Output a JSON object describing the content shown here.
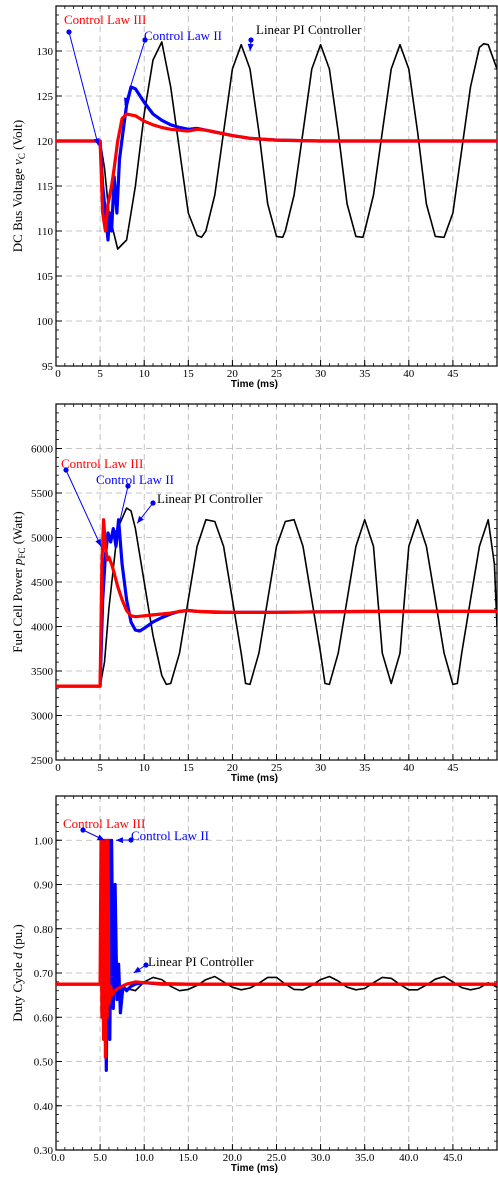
{
  "chart_data": [
    {
      "type": "line",
      "xlabel": "Time (ms)",
      "ylabel": "DC Bus Voltage",
      "ylabel_sym": "v",
      "ylabel_sub": "C",
      "ylabel_unit": "(Volt)",
      "xlim": [
        0,
        50
      ],
      "ylim": [
        95,
        135
      ],
      "x_ticks": [
        "0",
        "5",
        "10",
        "15",
        "20",
        "25",
        "30",
        "35",
        "40",
        "45"
      ],
      "y_ticks": [
        "95",
        "100",
        "105",
        "110",
        "115",
        "120",
        "125",
        "130"
      ],
      "grid": true,
      "series": [
        {
          "name": "Linear PI Controller",
          "color": "#000000",
          "x": [
            0,
            5,
            5.5,
            6,
            7,
            8,
            9,
            10,
            11,
            12,
            13,
            14,
            15,
            16,
            16.5,
            17,
            18,
            19,
            20,
            21,
            22,
            23,
            24,
            25,
            25.7,
            26,
            27,
            28,
            29,
            30,
            31,
            32,
            33,
            34,
            34.8,
            35,
            36,
            37,
            38,
            39,
            40,
            41,
            42,
            43,
            44,
            44,
            45,
            46,
            47,
            48,
            48.5,
            49,
            50
          ],
          "y": [
            120,
            120,
            117,
            112,
            108,
            109,
            115,
            123,
            129,
            131,
            126,
            119,
            112,
            109.5,
            109.3,
            110,
            114,
            121,
            128,
            130.7,
            128,
            121,
            113,
            109.4,
            109.3,
            110,
            114,
            121,
            128,
            130.7,
            128,
            121,
            113,
            109.4,
            109.3,
            110,
            114,
            121,
            128,
            130.7,
            128,
            121,
            113,
            109.4,
            109.3,
            109.3,
            112,
            119,
            126,
            130.4,
            130.8,
            130.7,
            128
          ]
        },
        {
          "name": "Control Law II",
          "color": "#0000ff",
          "x": [
            0,
            5,
            5.3,
            5.6,
            5.9,
            6.1,
            6.3,
            6.6,
            6.9,
            7.2,
            7.6,
            8,
            8.5,
            9,
            10,
            11,
            12,
            13,
            14,
            15,
            16,
            17,
            18,
            20,
            22,
            25,
            30,
            50
          ],
          "y": [
            120,
            120,
            115,
            112,
            109,
            112,
            110,
            116,
            112,
            118,
            121,
            124,
            126,
            125.8,
            124.3,
            123,
            122.3,
            121.8,
            121.5,
            121.3,
            121.4,
            121.2,
            121,
            120.6,
            120.3,
            120.1,
            120,
            120
          ]
        },
        {
          "name": "Control Law III",
          "color": "#ff0000",
          "x": [
            0,
            5,
            5.3,
            5.6,
            5.9,
            6.3,
            6.6,
            7,
            7.5,
            8,
            9,
            10,
            11,
            12,
            13,
            14,
            15,
            16,
            17,
            18,
            20,
            22,
            25,
            30,
            50
          ],
          "y": [
            120,
            120,
            112,
            110,
            113,
            115,
            117,
            120,
            122.5,
            123,
            122.8,
            122.2,
            121.8,
            121.5,
            121.3,
            121.2,
            121.1,
            121.3,
            121.2,
            121,
            120.6,
            120.3,
            120.1,
            120,
            120
          ]
        }
      ],
      "annotations": [
        {
          "text": "Control Law III",
          "color": "#ff0000",
          "target_series": "Control Law III"
        },
        {
          "text": "Control Law II",
          "color": "#0000ff",
          "target_series": "Control Law II"
        },
        {
          "text": "Linear PI Controller",
          "color": "#000000",
          "target_series": "Linear PI Controller"
        }
      ]
    },
    {
      "type": "line",
      "xlabel": "Time (ms)",
      "ylabel": "Fuel Cell Power",
      "ylabel_sym": "p",
      "ylabel_sub": "FC",
      "ylabel_unit": "(Watt)",
      "xlim": [
        0,
        50
      ],
      "ylim": [
        2500,
        6500
      ],
      "x_ticks": [
        "0",
        "5",
        "10",
        "15",
        "20",
        "25",
        "30",
        "35",
        "40",
        "45"
      ],
      "y_ticks": [
        "2500",
        "3000",
        "3500",
        "4000",
        "4500",
        "5000",
        "5500",
        "6000"
      ],
      "grid": true,
      "series": [
        {
          "name": "Linear PI Controller",
          "color": "#000000",
          "x": [
            0,
            5,
            5.5,
            6,
            7,
            8,
            8.5,
            9,
            10,
            11,
            12,
            12.5,
            13,
            14,
            15,
            16,
            17,
            18,
            19,
            20,
            21,
            21.5,
            22,
            23,
            24,
            25,
            26,
            27,
            28,
            29,
            30,
            30.5,
            31,
            32,
            33,
            34,
            35,
            36,
            36.5,
            37,
            38,
            39,
            39.5,
            40,
            41,
            42,
            43,
            44,
            45,
            45.5,
            46,
            47,
            48,
            49,
            49.7,
            50
          ],
          "y": [
            3330,
            3330,
            3600,
            4200,
            5100,
            5330,
            5300,
            5100,
            4500,
            3900,
            3450,
            3350,
            3360,
            3700,
            4300,
            4900,
            5200,
            5180,
            4900,
            4300,
            3700,
            3360,
            3350,
            3700,
            4300,
            4900,
            5180,
            5200,
            4900,
            4300,
            3700,
            3360,
            3350,
            3700,
            4300,
            4900,
            5200,
            4900,
            4300,
            3700,
            3360,
            3700,
            4300,
            4900,
            5200,
            4900,
            4300,
            3700,
            3350,
            3360,
            3700,
            4300,
            4900,
            5200,
            4700,
            4000
          ]
        },
        {
          "name": "Control Law II",
          "color": "#0000ff",
          "x": [
            0,
            5,
            5.3,
            5.6,
            5.9,
            6.2,
            6.5,
            6.8,
            7.1,
            7.5,
            8,
            8.5,
            9,
            9.5,
            10,
            11,
            12,
            13,
            14,
            15,
            16,
            18,
            20,
            25,
            30,
            35,
            40,
            45,
            50
          ],
          "y": [
            3330,
            3330,
            4300,
            4800,
            5050,
            4950,
            5100,
            4900,
            5200,
            4700,
            4300,
            4050,
            3960,
            3950,
            3980,
            4050,
            4100,
            4140,
            4170,
            4180,
            4170,
            4160,
            4160,
            4160,
            4165,
            4170,
            4170,
            4170,
            4170
          ]
        },
        {
          "name": "Control Law III",
          "color": "#ff0000",
          "x": [
            0,
            5,
            5.2,
            5.4,
            5.6,
            5.8,
            6,
            6.3,
            6.6,
            7,
            7.5,
            8,
            8.5,
            9,
            10,
            11,
            12,
            13,
            14,
            15,
            16,
            20,
            25,
            30,
            40,
            50
          ],
          "y": [
            3330,
            3330,
            4700,
            5200,
            4900,
            4750,
            4780,
            4700,
            4600,
            4450,
            4300,
            4180,
            4120,
            4110,
            4120,
            4130,
            4140,
            4150,
            4170,
            4180,
            4170,
            4160,
            4160,
            4165,
            4170,
            4170
          ]
        }
      ],
      "annotations": [
        {
          "text": "Control Law III",
          "color": "#ff0000",
          "target_series": "Control Law III"
        },
        {
          "text": "Control Law II",
          "color": "#0000ff",
          "target_series": "Control Law II"
        },
        {
          "text": "Linear PI Controller",
          "color": "#000000",
          "target_series": "Linear PI Controller"
        }
      ]
    },
    {
      "type": "line",
      "xlabel": "Time (ms)",
      "ylabel": "Duty Cycle",
      "ylabel_sym": "d",
      "ylabel_sub": "",
      "ylabel_unit": "(pu.)",
      "xlim": [
        0,
        50
      ],
      "ylim": [
        0.3,
        1.1
      ],
      "x_ticks": [
        "0.0",
        "5.0",
        "10.0",
        "15.0",
        "20.0",
        "25.0",
        "30.0",
        "35.0",
        "40.0",
        "45.0"
      ],
      "y_ticks": [
        "0.30",
        "0.40",
        "0.50",
        "0.60",
        "0.70",
        "0.80",
        "0.90",
        "1.00"
      ],
      "grid": true,
      "series": [
        {
          "name": "Linear PI Controller",
          "color": "#000000",
          "x": [
            0,
            5,
            6,
            7,
            8,
            9,
            10,
            11,
            12,
            13,
            14,
            15,
            16,
            17,
            18,
            19,
            20,
            21,
            22,
            23,
            24,
            25,
            26,
            27,
            28,
            29,
            30,
            31,
            32,
            33,
            34,
            35,
            36,
            37,
            38,
            39,
            40,
            41,
            42,
            43,
            44,
            45,
            46,
            47,
            48,
            49,
            50
          ],
          "y": [
            0.675,
            0.675,
            0.68,
            0.67,
            0.665,
            0.66,
            0.68,
            0.69,
            0.685,
            0.67,
            0.66,
            0.663,
            0.672,
            0.685,
            0.692,
            0.68,
            0.668,
            0.662,
            0.666,
            0.677,
            0.69,
            0.69,
            0.675,
            0.663,
            0.662,
            0.672,
            0.685,
            0.692,
            0.682,
            0.668,
            0.662,
            0.665,
            0.678,
            0.69,
            0.688,
            0.674,
            0.662,
            0.662,
            0.673,
            0.686,
            0.692,
            0.68,
            0.667,
            0.662,
            0.666,
            0.678,
            0.668
          ]
        },
        {
          "name": "Control Law II",
          "color": "#0000ff",
          "x": [
            0,
            5,
            5.2,
            5.4,
            5.6,
            5.7,
            5.9,
            6,
            6.1,
            6.3,
            6.5,
            6.7,
            6.9,
            7.1,
            7.3,
            7.6,
            8,
            8.5,
            9,
            10,
            12,
            15,
            20,
            50
          ],
          "y": [
            0.675,
            0.675,
            0.78,
            0.58,
            0.7,
            0.48,
            0.9,
            1.0,
            0.55,
            1.0,
            0.62,
            0.9,
            0.64,
            0.72,
            0.61,
            0.67,
            0.66,
            0.67,
            0.675,
            0.678,
            0.675,
            0.675,
            0.675,
            0.675
          ]
        },
        {
          "name": "Control Law III",
          "color": "#ff0000",
          "x": [
            0,
            5,
            5.1,
            5.2,
            5.3,
            5.4,
            5.5,
            5.6,
            5.7,
            5.8,
            5.9,
            6,
            6.2,
            6.4,
            6.7,
            7,
            7.5,
            8,
            9,
            10,
            12,
            15,
            20,
            50
          ],
          "y": [
            0.675,
            0.675,
            1.0,
            0.6,
            1.0,
            0.55,
            1.0,
            0.51,
            1.0,
            0.6,
            1.0,
            0.63,
            0.67,
            0.65,
            0.66,
            0.665,
            0.67,
            0.675,
            0.68,
            0.678,
            0.676,
            0.675,
            0.675,
            0.675
          ]
        }
      ],
      "annotations": [
        {
          "text": "Control Law III",
          "color": "#ff0000",
          "target_series": "Control Law III"
        },
        {
          "text": "Control Law II",
          "color": "#0000ff",
          "target_series": "Control Law II"
        },
        {
          "text": "Linear PI Controller",
          "color": "#000000",
          "target_series": "Linear PI Controller"
        }
      ]
    }
  ]
}
